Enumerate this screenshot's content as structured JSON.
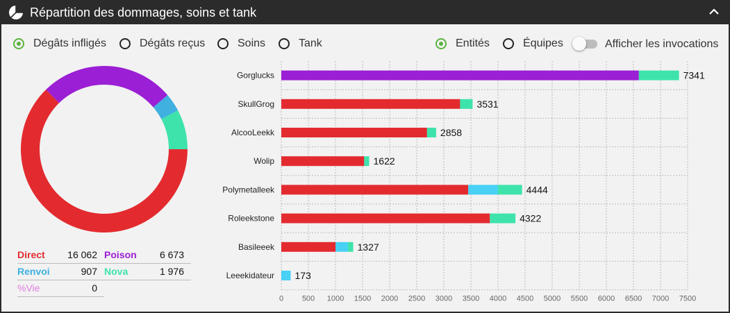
{
  "header": {
    "title": "Répartition des dommages, soins et tank"
  },
  "filters": {
    "type_options": [
      {
        "label": "Dégâts infligés",
        "selected": true
      },
      {
        "label": "Dégâts reçus",
        "selected": false
      },
      {
        "label": "Soins",
        "selected": false
      },
      {
        "label": "Tank",
        "selected": false
      }
    ],
    "group_options": [
      {
        "label": "Entités",
        "selected": true
      },
      {
        "label": "Équipes",
        "selected": false
      }
    ],
    "invocations_toggle": {
      "label": "Afficher les invocations",
      "on": false
    }
  },
  "colors": {
    "direct": "#e32b2f",
    "poison": "#9b1fd4",
    "renvoi": "#3fb0e0",
    "nova": "#3ee3ab",
    "vie": "#e07de3",
    "renvoi_bar": "#48d1f5"
  },
  "legend": [
    {
      "key": "direct",
      "name": "Direct",
      "value": "16 062"
    },
    {
      "key": "poison",
      "name": "Poison",
      "value": "6 673"
    },
    {
      "key": "renvoi",
      "name": "Renvoi",
      "value": "907"
    },
    {
      "key": "nova",
      "name": "Nova",
      "value": "1 976"
    },
    {
      "key": "vie",
      "name": "%Vie",
      "value": "0"
    }
  ],
  "chart_data": [
    {
      "type": "pie",
      "categories": [
        "Direct",
        "Poison",
        "Renvoi",
        "Nova",
        "%Vie"
      ],
      "values": [
        16062,
        6673,
        907,
        1976,
        0
      ]
    },
    {
      "type": "bar",
      "orientation": "horizontal",
      "stacked": true,
      "categories": [
        "Gorglucks",
        "SkullGrog",
        "AlcooLeekk",
        "Wolip",
        "Polymetalleek",
        "Roleekstone",
        "Basileeek",
        "Leeekidateur"
      ],
      "series": [
        {
          "key": "direct",
          "values": [
            0,
            3300,
            2690,
            1530,
            3450,
            3850,
            1000,
            0
          ]
        },
        {
          "key": "poison",
          "values": [
            6600,
            0,
            0,
            0,
            0,
            0,
            0,
            0
          ]
        },
        {
          "key": "renvoi",
          "values": [
            0,
            0,
            0,
            0,
            550,
            0,
            230,
            173
          ]
        },
        {
          "key": "nova",
          "values": [
            741,
            231,
            168,
            92,
            444,
            472,
            97,
            0
          ]
        }
      ],
      "totals": [
        7341,
        3531,
        2858,
        1622,
        4444,
        4322,
        1327,
        173
      ],
      "xlim": [
        0,
        7500
      ],
      "xticks": [
        0,
        500,
        1000,
        1500,
        2000,
        2500,
        3000,
        3500,
        4000,
        4500,
        5000,
        5500,
        6000,
        6500,
        7000,
        7500
      ],
      "grid": true
    }
  ]
}
